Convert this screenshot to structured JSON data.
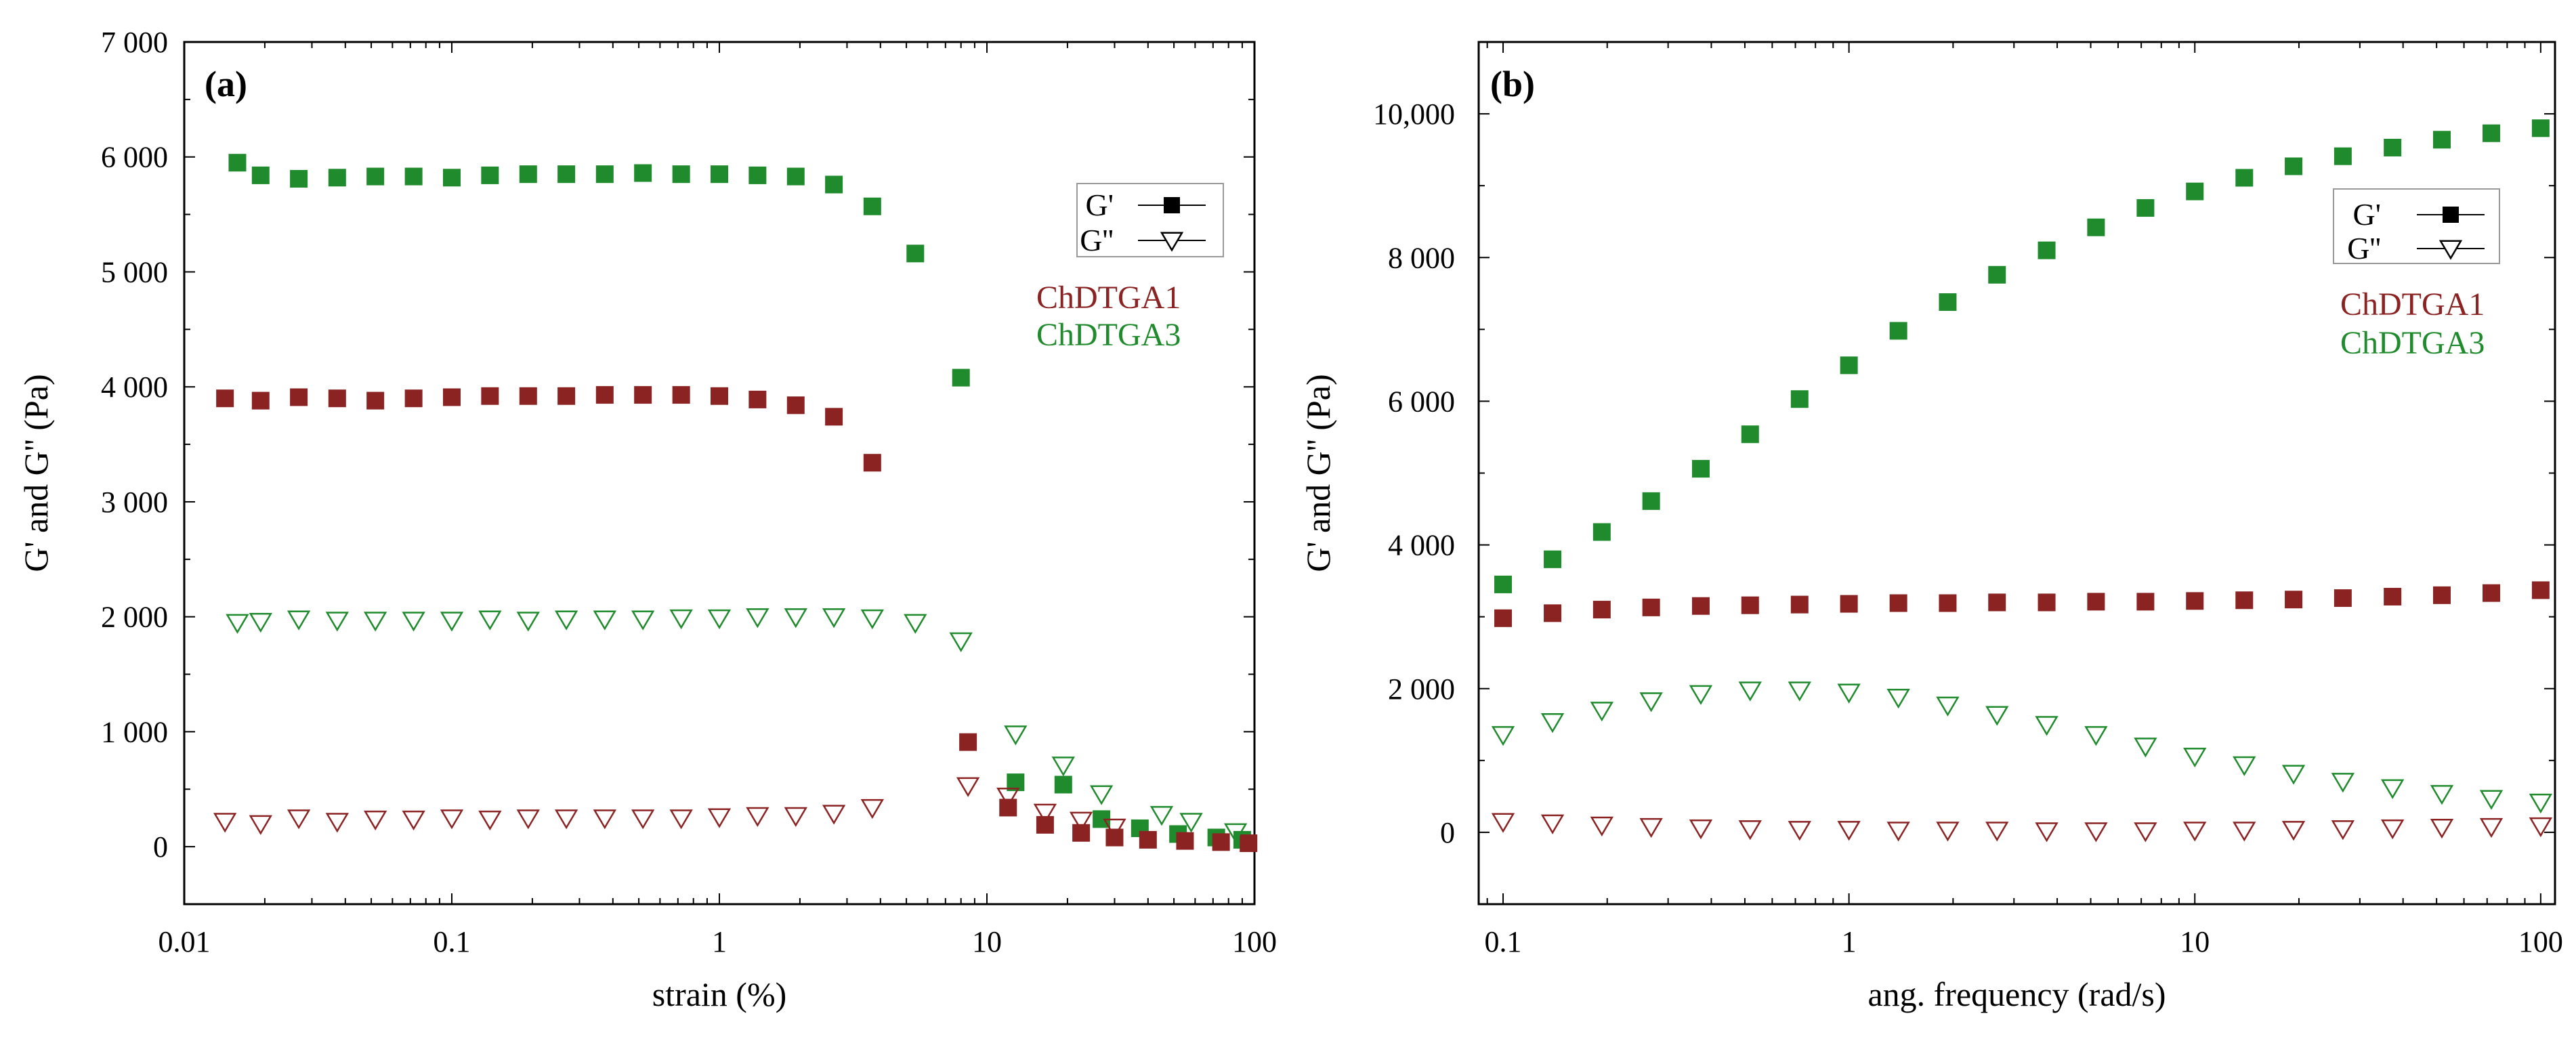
{
  "chart_data": [
    {
      "type": "scatter",
      "panel_label": "(a)",
      "xlabel": "strain (%)",
      "ylabel": "G' and G'' (Pa)",
      "xscale": "log",
      "xlim": [
        0.01,
        100
      ],
      "ylim": [
        -500,
        7000
      ],
      "xticks": [
        0.01,
        0.1,
        1,
        10,
        100
      ],
      "xtick_labels": [
        "0.01",
        "0.1",
        "1",
        "10",
        "100"
      ],
      "yticks": [
        0,
        1000,
        2000,
        3000,
        4000,
        5000,
        6000,
        7000
      ],
      "ytick_labels": [
        "0",
        "1 000",
        "2 000",
        "3 000",
        "4 000",
        "5 000",
        "6 000",
        "7 000"
      ],
      "legend": {
        "entries": [
          {
            "label": "G'",
            "marker": "square"
          },
          {
            "label": "G''",
            "marker": "triangle-down-open"
          }
        ],
        "samples": [
          {
            "label": "ChDTGA1",
            "color": "#8b2323"
          },
          {
            "label": "ChDTGA3",
            "color": "#1f8b2c"
          }
        ],
        "placement": "right"
      },
      "series": [
        {
          "name": "ChDTGA3 G'",
          "sample": "ChDTGA3",
          "marker": "square",
          "color": "#1f8b2c",
          "x": [
            0.0158,
            0.0193,
            0.0268,
            0.0373,
            0.0518,
            0.072,
            0.1,
            0.1389,
            0.193,
            0.268,
            0.373,
            0.518,
            0.72,
            1.0,
            1.389,
            1.93,
            2.68,
            3.73,
            5.4,
            8.0,
            12.8,
            19.3,
            26.8,
            37.3,
            51.8,
            72.0,
            90.0
          ],
          "y": [
            5950,
            5840,
            5810,
            5820,
            5830,
            5830,
            5820,
            5840,
            5850,
            5850,
            5850,
            5860,
            5850,
            5850,
            5840,
            5830,
            5760,
            5570,
            5160,
            4080,
            560,
            540,
            240,
            160,
            110,
            80,
            60
          ]
        },
        {
          "name": "ChDTGA1 G'",
          "sample": "ChDTGA1",
          "marker": "square",
          "color": "#8b2323",
          "x": [
            0.0142,
            0.0193,
            0.0268,
            0.0373,
            0.0518,
            0.072,
            0.1,
            0.1389,
            0.193,
            0.268,
            0.373,
            0.518,
            0.72,
            1.0,
            1.389,
            1.93,
            2.68,
            3.73,
            8.5,
            12.0,
            16.5,
            22.5,
            30.0,
            40.0,
            55.0,
            75.0,
            95.0
          ],
          "y": [
            3900,
            3880,
            3910,
            3900,
            3880,
            3900,
            3910,
            3920,
            3920,
            3920,
            3930,
            3930,
            3930,
            3920,
            3890,
            3840,
            3740,
            3340,
            910,
            340,
            190,
            120,
            80,
            60,
            50,
            40,
            30
          ]
        },
        {
          "name": "ChDTGA3 G''",
          "sample": "ChDTGA3",
          "marker": "triangle-down-open",
          "color": "#1f8b2c",
          "x": [
            0.0158,
            0.0193,
            0.0268,
            0.0373,
            0.0518,
            0.072,
            0.1,
            0.1389,
            0.193,
            0.268,
            0.373,
            0.518,
            0.72,
            1.0,
            1.389,
            1.93,
            2.68,
            3.73,
            5.4,
            8.0,
            12.8,
            19.3,
            26.8,
            45.0,
            58.0,
            85.0
          ],
          "y": [
            1950,
            1960,
            1980,
            1970,
            1970,
            1970,
            1970,
            1980,
            1970,
            1980,
            1980,
            1980,
            1990,
            1990,
            2000,
            2000,
            2000,
            1990,
            1950,
            1790,
            980,
            710,
            460,
            280,
            220,
            130
          ]
        },
        {
          "name": "ChDTGA1 G''",
          "sample": "ChDTGA1",
          "marker": "triangle-down-open",
          "color": "#8b2323",
          "x": [
            0.0142,
            0.0193,
            0.0268,
            0.0373,
            0.0518,
            0.072,
            0.1,
            0.1389,
            0.193,
            0.268,
            0.373,
            0.518,
            0.72,
            1.0,
            1.389,
            1.93,
            2.68,
            3.73,
            8.5,
            12.0,
            16.5,
            22.5,
            30.0
          ],
          "y": [
            220,
            200,
            250,
            220,
            240,
            240,
            250,
            240,
            250,
            250,
            250,
            250,
            250,
            260,
            270,
            270,
            290,
            340,
            530,
            440,
            300,
            230,
            170
          ]
        }
      ]
    },
    {
      "type": "scatter",
      "panel_label": "(b)",
      "xlabel": "ang. frequency (rad/s)",
      "ylabel": "G' and G'' (Pa)",
      "xscale": "log",
      "xlim": [
        0.085,
        110
      ],
      "ylim": [
        -1000,
        11000
      ],
      "xticks": [
        0.1,
        1,
        10,
        100
      ],
      "xtick_labels": [
        "0.1",
        "1",
        "10",
        "100"
      ],
      "yticks": [
        0,
        2000,
        4000,
        6000,
        8000,
        10000
      ],
      "ytick_labels": [
        "0",
        "2 000",
        "4 000",
        "6 000",
        "8 000",
        "10,000"
      ],
      "legend": {
        "entries": [
          {
            "label": "G'",
            "marker": "square"
          },
          {
            "label": "G''",
            "marker": "triangle-down-open"
          }
        ],
        "samples": [
          {
            "label": "ChDTGA1",
            "color": "#8b2323"
          },
          {
            "label": "ChDTGA3",
            "color": "#1f8b2c"
          }
        ],
        "placement": "right"
      },
      "series": [
        {
          "name": "ChDTGA3 G'",
          "sample": "ChDTGA3",
          "marker": "square",
          "color": "#1f8b2c",
          "x": [
            0.1,
            0.139,
            0.193,
            0.268,
            0.373,
            0.518,
            0.72,
            1.0,
            1.39,
            1.93,
            2.68,
            3.73,
            5.18,
            7.2,
            10.0,
            13.9,
            19.3,
            26.8,
            37.3,
            51.8,
            72.0,
            100.0
          ],
          "y": [
            3450,
            3800,
            4180,
            4610,
            5060,
            5540,
            6030,
            6500,
            6980,
            7380,
            7760,
            8100,
            8420,
            8690,
            8920,
            9110,
            9270,
            9410,
            9530,
            9640,
            9730,
            9800
          ]
        },
        {
          "name": "ChDTGA1 G'",
          "sample": "ChDTGA1",
          "marker": "square",
          "color": "#8b2323",
          "x": [
            0.1,
            0.139,
            0.193,
            0.268,
            0.373,
            0.518,
            0.72,
            1.0,
            1.39,
            1.93,
            2.68,
            3.73,
            5.18,
            7.2,
            10.0,
            13.9,
            19.3,
            26.8,
            37.3,
            51.8,
            72.0,
            100.0
          ],
          "y": [
            2980,
            3050,
            3100,
            3130,
            3150,
            3160,
            3170,
            3180,
            3190,
            3190,
            3200,
            3200,
            3210,
            3210,
            3220,
            3230,
            3240,
            3260,
            3280,
            3300,
            3330,
            3370
          ]
        },
        {
          "name": "ChDTGA3 G''",
          "sample": "ChDTGA3",
          "marker": "triangle-down-open",
          "color": "#1f8b2c",
          "x": [
            0.1,
            0.139,
            0.193,
            0.268,
            0.373,
            0.518,
            0.72,
            1.0,
            1.39,
            1.93,
            2.68,
            3.73,
            5.18,
            7.2,
            10.0,
            13.9,
            19.3,
            26.8,
            37.3,
            51.8,
            72.0,
            100.0
          ],
          "y": [
            1360,
            1540,
            1700,
            1830,
            1930,
            1980,
            1980,
            1950,
            1880,
            1770,
            1640,
            1500,
            1360,
            1200,
            1060,
            940,
            820,
            710,
            620,
            540,
            470,
            420
          ]
        },
        {
          "name": "ChDTGA1 G''",
          "sample": "ChDTGA1",
          "marker": "triangle-down-open",
          "color": "#8b2323",
          "x": [
            0.1,
            0.139,
            0.193,
            0.268,
            0.373,
            0.518,
            0.72,
            1.0,
            1.39,
            1.93,
            2.68,
            3.73,
            5.18,
            7.2,
            10.0,
            13.9,
            19.3,
            26.8,
            37.3,
            51.8,
            72.0,
            100.0
          ],
          "y": [
            150,
            130,
            100,
            80,
            60,
            50,
            40,
            40,
            30,
            30,
            30,
            20,
            20,
            20,
            30,
            30,
            40,
            50,
            60,
            70,
            80,
            90
          ]
        }
      ]
    }
  ]
}
